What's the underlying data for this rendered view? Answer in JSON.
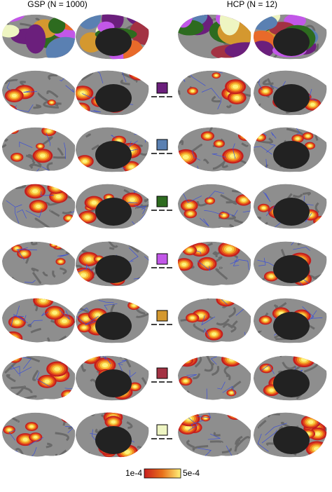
{
  "header": {
    "left": "GSP (N = 1000)",
    "right": "HCP (N = 12)"
  },
  "swatches": [
    "#6b1f7c",
    "#5a80b2",
    "#2d6b1f",
    "#c257e8",
    "#d4982f",
    "#a33243",
    "#eef5c2"
  ],
  "colorbar": {
    "min_label": "1e-4",
    "max_label": "5e-4"
  }
}
